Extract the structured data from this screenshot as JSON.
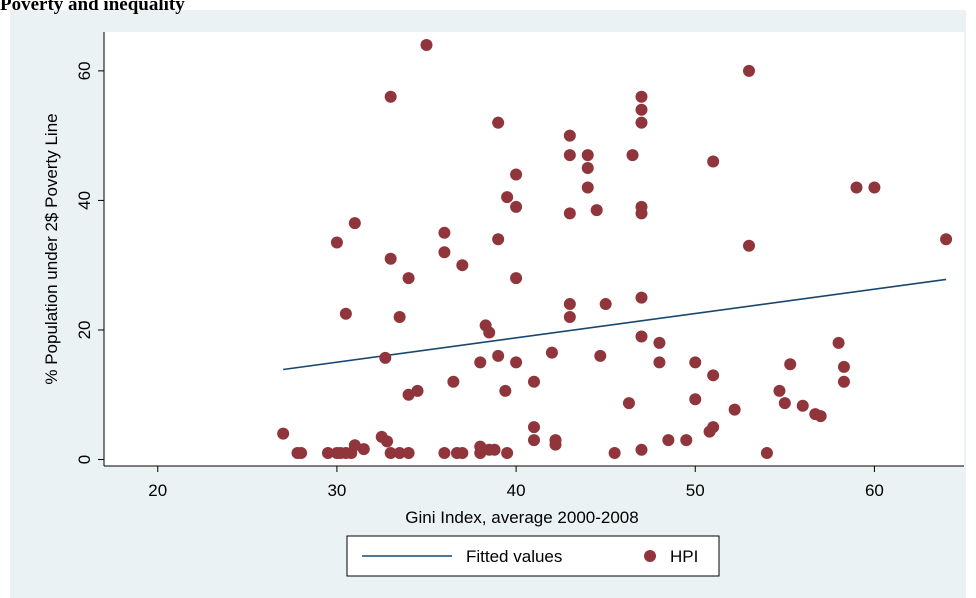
{
  "page_title": "Poverty and inequality",
  "colors": {
    "background": "#eaf2f3",
    "plot_area": "#ffffff",
    "fit_line": "#1a476f",
    "points": "#90353b"
  },
  "chart_data": {
    "type": "scatter",
    "title": "Poverty and inequality",
    "xlabel": "Gini Index, average 2000-2008",
    "ylabel": "% Population under 2$ Poverty Line",
    "xlim": [
      17,
      65
    ],
    "ylim": [
      -1,
      66
    ],
    "x_ticks": [
      20,
      30,
      40,
      50,
      60
    ],
    "y_ticks": [
      0,
      20,
      40,
      60
    ],
    "grid": false,
    "legend_position": "bottom",
    "series": [
      {
        "name": "Fitted values",
        "kind": "line",
        "x": [
          27,
          64
        ],
        "y": [
          13.9,
          27.8
        ]
      },
      {
        "name": "HPI",
        "kind": "scatter",
        "x": [
          35,
          53,
          33,
          47,
          47,
          47,
          39,
          43,
          44,
          46.5,
          43,
          44,
          40,
          44,
          47,
          51,
          39.5,
          40,
          44.5,
          43,
          47,
          31,
          36,
          30,
          39,
          53,
          64,
          59,
          60,
          33,
          37,
          36,
          34,
          40,
          43,
          45,
          47,
          43,
          30.5,
          33.5,
          38.3,
          38.5,
          47,
          48,
          58,
          32.7,
          39,
          40,
          44.7,
          42,
          38,
          48,
          50,
          55.3,
          58.3,
          36.5,
          41,
          51,
          58.3,
          34.5,
          34,
          39.4,
          54.7,
          50,
          55,
          56,
          56.7,
          57,
          52.2,
          46.3,
          41,
          51,
          50.8,
          41,
          42.2,
          48.5,
          49.5,
          42.2,
          27,
          32.5,
          32.8,
          31,
          31.5,
          28,
          27.8,
          29.5,
          30,
          30.2,
          30.5,
          30.8,
          33,
          33.5,
          34,
          36,
          36.7,
          37,
          38,
          38,
          38.5,
          38.8,
          39.5,
          45.5,
          47,
          54
        ],
        "y": [
          64,
          60,
          56,
          56,
          54,
          52,
          52,
          50,
          47,
          47,
          47,
          45,
          44,
          42,
          39,
          46,
          40.5,
          39,
          38.5,
          38,
          38,
          36.5,
          35,
          33.5,
          34,
          33,
          34,
          42,
          42,
          31,
          30,
          32,
          28,
          28,
          24,
          24,
          25,
          22,
          22.5,
          22,
          20.7,
          19.6,
          19,
          18,
          18,
          15.7,
          16,
          15,
          16,
          16.5,
          15,
          15,
          15,
          14.7,
          14.3,
          12,
          12,
          13,
          12,
          10.6,
          10,
          10.6,
          10.6,
          9.3,
          8.7,
          8.3,
          7,
          6.7,
          7.7,
          8.7,
          5,
          5,
          4.3,
          3,
          3,
          3,
          3,
          2.3,
          4,
          3.5,
          2.8,
          2.2,
          1.6,
          1,
          1,
          1,
          1,
          1,
          1,
          1,
          1,
          1,
          1,
          1,
          1,
          1,
          1,
          2,
          1.5,
          1.5,
          1,
          1,
          1.5,
          1
        ]
      }
    ]
  }
}
